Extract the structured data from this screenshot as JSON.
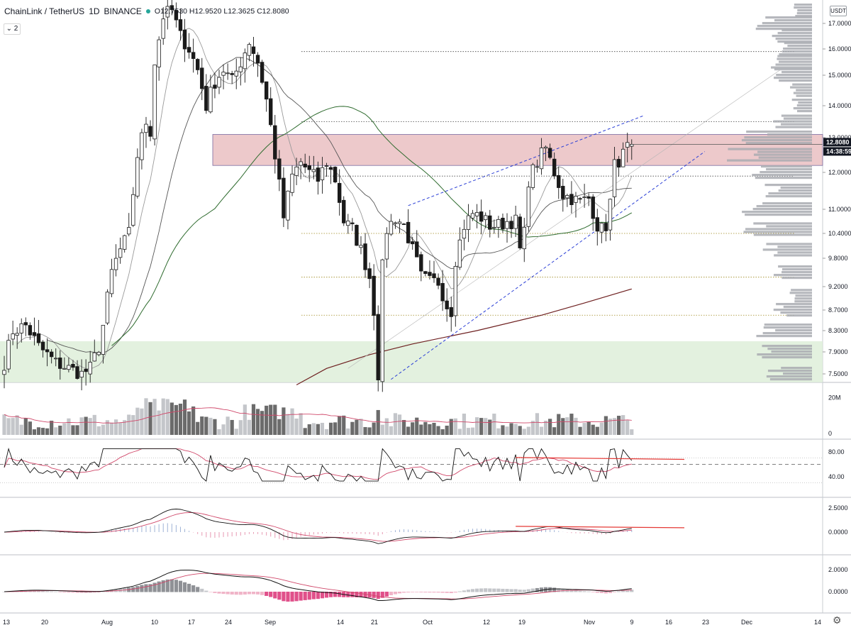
{
  "header": {
    "symbol": "ChainLink / TetherUS",
    "interval": "1D",
    "exchange": "BINANCE",
    "ohlc": "O12.7530 H12.9520 L12.3625 C12.8080",
    "collapse_label": "⌄ 2",
    "currency": "USDT",
    "settings_icon": "gear-icon"
  },
  "colors": {
    "up": "#ffffff",
    "down": "#1a1a1a",
    "candle_border": "#1a1a1a",
    "zone_red": "#e7b7b9",
    "zone_green": "#dcedd7",
    "volume_profile": "#a9acb2",
    "channel": "#2b3fd6",
    "ma_green": "#2e6b2e",
    "ma_brown": "#6e2020",
    "signal": "#d0486a",
    "red_line": "#e53935",
    "hist_pink": "#e0508a"
  },
  "price_axis": {
    "ticks": [
      "17.0000",
      "16.0000",
      "15.0000",
      "14.0000",
      "13.0000",
      "12.0000",
      "11.0000",
      "10.4000",
      "9.8000",
      "9.2000",
      "8.7000",
      "8.3000",
      "7.9000",
      "7.5000"
    ],
    "last_price": "12.8080",
    "countdown": "14:38:59"
  },
  "time_axis": {
    "labels": [
      "13",
      "20",
      "Aug",
      "10",
      "17",
      "24",
      "Sep",
      "14",
      "21",
      "Oct",
      "12",
      "19",
      "Nov",
      "9",
      "16",
      "23",
      "Dec",
      "14"
    ]
  },
  "volume_pane": {
    "ticks": [
      "20M",
      "0"
    ]
  },
  "rsi_pane": {
    "ticks": [
      "80.00",
      "40.00"
    ]
  },
  "macd1_pane": {
    "ticks": [
      "2.5000",
      "0.0000"
    ]
  },
  "macd2_pane": {
    "ticks": [
      "2.0000",
      "0.0000"
    ]
  },
  "chart_data": {
    "type": "candlestick",
    "title": "ChainLink / TetherUS, 1D, BINANCE",
    "last": {
      "open": 12.753,
      "high": 12.952,
      "low": 12.3625,
      "close": 12.808
    },
    "price_keypoints": [
      [
        0,
        7.7
      ],
      [
        2,
        8.3
      ],
      [
        5,
        8.4
      ],
      [
        8,
        8.0
      ],
      [
        12,
        7.7
      ],
      [
        15,
        7.6
      ],
      [
        18,
        7.5
      ],
      [
        20,
        7.6
      ],
      [
        22,
        8.0
      ],
      [
        23,
        8.4
      ],
      [
        25,
        9.5
      ],
      [
        27,
        10.0
      ],
      [
        29,
        10.4
      ],
      [
        31,
        12.5
      ],
      [
        33,
        13.5
      ],
      [
        34,
        13.2
      ],
      [
        35,
        15.5
      ],
      [
        37,
        17.3
      ],
      [
        39,
        17.5
      ],
      [
        41,
        16.5
      ],
      [
        43,
        16.0
      ],
      [
        45,
        15.2
      ],
      [
        47,
        14.0
      ],
      [
        49,
        14.8
      ],
      [
        51,
        15.2
      ],
      [
        53,
        14.8
      ],
      [
        55,
        15.5
      ],
      [
        57,
        16.3
      ],
      [
        59,
        15.5
      ],
      [
        61,
        14.2
      ],
      [
        63,
        12.5
      ],
      [
        65,
        10.8
      ],
      [
        67,
        11.9
      ],
      [
        69,
        12.3
      ],
      [
        71,
        12.0
      ],
      [
        73,
        11.8
      ],
      [
        75,
        12.3
      ],
      [
        77,
        11.8
      ],
      [
        79,
        10.7
      ],
      [
        81,
        10.5
      ],
      [
        83,
        10.0
      ],
      [
        85,
        9.4
      ],
      [
        86,
        8.7
      ],
      [
        87,
        7.5
      ],
      [
        88,
        9.6
      ],
      [
        89,
        10.5
      ],
      [
        91,
        10.8
      ],
      [
        93,
        10.6
      ],
      [
        95,
        10.0
      ],
      [
        97,
        9.4
      ],
      [
        99,
        9.3
      ],
      [
        101,
        9.3
      ],
      [
        103,
        8.8
      ],
      [
        104,
        8.7
      ],
      [
        105,
        9.8
      ],
      [
        107,
        10.6
      ],
      [
        109,
        10.9
      ],
      [
        111,
        10.8
      ],
      [
        113,
        10.6
      ],
      [
        115,
        10.6
      ],
      [
        117,
        10.7
      ],
      [
        119,
        10.7
      ],
      [
        120,
        10.0
      ],
      [
        121,
        10.4
      ],
      [
        122,
        11.8
      ],
      [
        124,
        12.3
      ],
      [
        126,
        12.7
      ],
      [
        128,
        12.0
      ],
      [
        130,
        11.4
      ],
      [
        132,
        11.3
      ],
      [
        134,
        11.2
      ],
      [
        136,
        11.3
      ],
      [
        138,
        10.6
      ],
      [
        139,
        10.5
      ],
      [
        140,
        10.6
      ],
      [
        141,
        11.2
      ],
      [
        142,
        12.2
      ],
      [
        144,
        12.5
      ],
      [
        145,
        12.7
      ],
      [
        146,
        12.81
      ]
    ],
    "volume_profile_bins": [
      {
        "price": 17.5,
        "vol": 0.25
      },
      {
        "price": 17.0,
        "vol": 0.7
      },
      {
        "price": 16.5,
        "vol": 0.55
      },
      {
        "price": 16.0,
        "vol": 0.45
      },
      {
        "price": 15.5,
        "vol": 0.5
      },
      {
        "price": 15.0,
        "vol": 0.45
      },
      {
        "price": 14.5,
        "vol": 0.3
      },
      {
        "price": 14.0,
        "vol": 0.25
      },
      {
        "price": 13.5,
        "vol": 0.5
      },
      {
        "price": 13.0,
        "vol": 0.85
      },
      {
        "price": 12.5,
        "vol": 1.0
      },
      {
        "price": 12.0,
        "vol": 0.75
      },
      {
        "price": 11.5,
        "vol": 0.6
      },
      {
        "price": 11.0,
        "vol": 0.9
      },
      {
        "price": 10.5,
        "vol": 0.8
      },
      {
        "price": 10.0,
        "vol": 0.6
      },
      {
        "price": 9.5,
        "vol": 0.45
      },
      {
        "price": 9.0,
        "vol": 0.3
      },
      {
        "price": 8.7,
        "vol": 0.45
      },
      {
        "price": 8.3,
        "vol": 0.7
      },
      {
        "price": 7.9,
        "vol": 0.75
      },
      {
        "price": 7.5,
        "vol": 0.55
      }
    ],
    "levels": [
      15.9,
      13.5,
      11.9,
      10.4,
      9.4,
      8.6
    ],
    "zones": [
      {
        "name": "resistance",
        "from": 12.2,
        "to": 13.1
      },
      {
        "name": "support",
        "from": 7.3,
        "to": 8.1
      }
    ],
    "channel": {
      "upper": [
        [
          94,
          11.1
        ],
        [
          149,
          13.7
        ]
      ],
      "lower": [
        [
          90,
          7.4
        ],
        [
          163,
          12.6
        ]
      ]
    },
    "ranges": {
      "x": [
        0,
        182
      ],
      "y": [
        7.3,
        17.75
      ]
    }
  }
}
